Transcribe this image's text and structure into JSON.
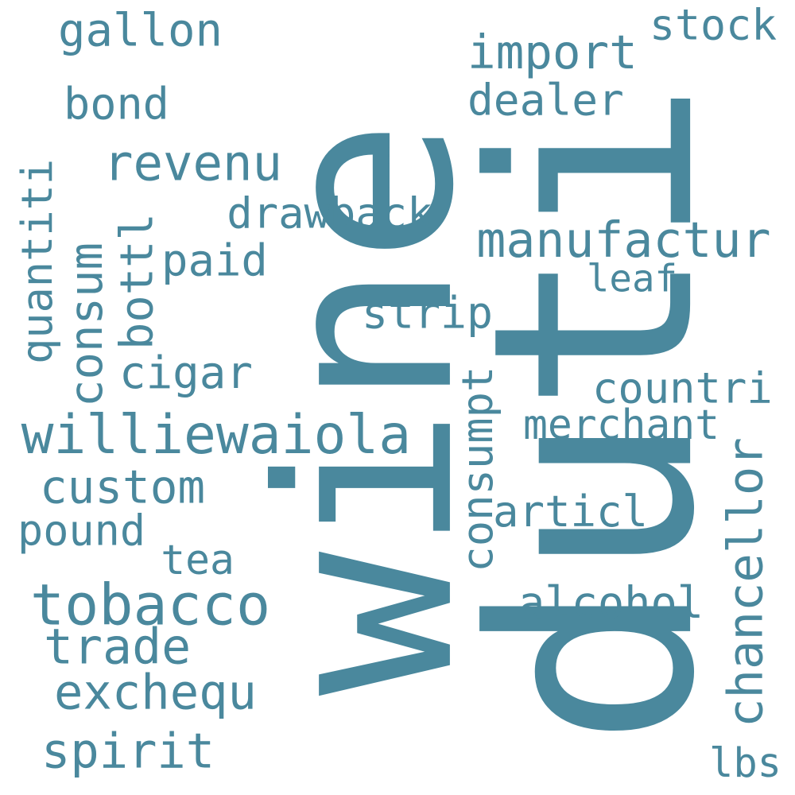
{
  "colors": {
    "background": "#ffffff",
    "word": "#4a889d"
  },
  "words": {
    "duti": "duti",
    "wine": "wine",
    "williewaiola": "williewaiola",
    "tobacco": "tobacco",
    "manufactur": "manufactur",
    "import": "import",
    "revenu": "revenu",
    "gallon": "gallon",
    "stock": "stock",
    "dealer": "dealer",
    "bond": "bond",
    "drawback": "drawback",
    "paid": "paid",
    "leaf": "leaf",
    "strip": "strip",
    "cigar": "cigar",
    "countri": "countri",
    "merchant": "merchant",
    "custom": "custom",
    "articl": "articl",
    "pound": "pound",
    "tea": "tea",
    "alcohol": "alcohol",
    "trade": "trade",
    "exchequ": "exchequ",
    "spirit": "spirit",
    "lbs": "lbs",
    "quantiti": "quantiti",
    "consum": "consum",
    "bottl": "bottl",
    "consumpt": "consumpt",
    "chancellor": "chancellor"
  }
}
